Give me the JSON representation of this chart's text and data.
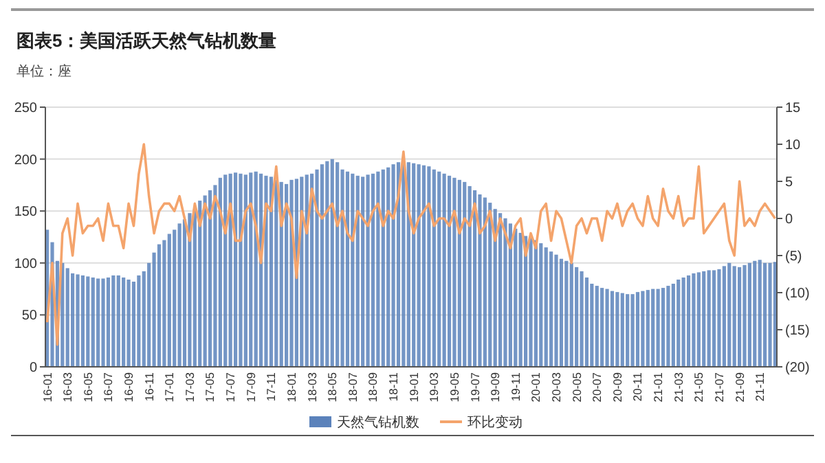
{
  "chart_data": {
    "type": "bar",
    "title": "图表5：美国活跃天然气钻机数量",
    "subtitle": "单位：座",
    "categories": [
      "16-01",
      null,
      null,
      null,
      "16-03",
      null,
      null,
      null,
      "16-05",
      null,
      null,
      null,
      "16-07",
      null,
      null,
      null,
      "16-09",
      null,
      null,
      null,
      "16-11",
      null,
      null,
      null,
      "17-01",
      null,
      null,
      null,
      "17-03",
      null,
      null,
      null,
      "17-05",
      null,
      null,
      null,
      "17-07",
      null,
      null,
      null,
      "17-09",
      null,
      null,
      null,
      "17-11",
      null,
      null,
      null,
      "18-01",
      null,
      null,
      null,
      "18-03",
      null,
      null,
      null,
      "18-05",
      null,
      null,
      null,
      "18-07",
      null,
      null,
      null,
      "18-09",
      null,
      null,
      null,
      "18-11",
      null,
      null,
      null,
      "19-01",
      null,
      null,
      null,
      "19-03",
      null,
      null,
      null,
      "19-05",
      null,
      null,
      null,
      "19-07",
      null,
      null,
      null,
      "19-09",
      null,
      null,
      null,
      "19-11",
      null,
      null,
      null,
      "20-01",
      null,
      null,
      null,
      "20-03",
      null,
      null,
      null,
      "20-05",
      null,
      null,
      null,
      "20-07",
      null,
      null,
      null,
      "20-09",
      null,
      null,
      null,
      "20-11",
      null,
      null,
      null,
      "21-01",
      null,
      null,
      null,
      "21-03",
      null,
      null,
      null,
      "21-05",
      null,
      null,
      null,
      "21-07",
      null,
      null,
      null,
      "21-09",
      null,
      null,
      null,
      "21-11",
      null,
      null,
      null
    ],
    "series": [
      {
        "name": "天然气钻机数",
        "color": "#5b82bb",
        "values": [
          132,
          120,
          102,
          100,
          95,
          90,
          89,
          88,
          87,
          86,
          85,
          85,
          86,
          88,
          88,
          86,
          84,
          82,
          88,
          92,
          100,
          110,
          118,
          122,
          128,
          132,
          138,
          142,
          148,
          152,
          160,
          165,
          170,
          175,
          182,
          185,
          186,
          187,
          186,
          185,
          187,
          188,
          186,
          184,
          183,
          180,
          178,
          176,
          180,
          181,
          183,
          185,
          186,
          190,
          195,
          198,
          200,
          197,
          190,
          188,
          186,
          184,
          183,
          185,
          186,
          188,
          190,
          192,
          195,
          197,
          198,
          197,
          196,
          195,
          194,
          193,
          190,
          188,
          186,
          184,
          182,
          180,
          178,
          174,
          170,
          166,
          163,
          158,
          152,
          148,
          143,
          138,
          133,
          129,
          126,
          124,
          122,
          119,
          115,
          111,
          108,
          104,
          102,
          100,
          96,
          92,
          86,
          80,
          78,
          76,
          75,
          73,
          72,
          71,
          70,
          70,
          72,
          73,
          74,
          75,
          75,
          76,
          78,
          80,
          84,
          86,
          88,
          90,
          91,
          92,
          93,
          93,
          94,
          97,
          100,
          97,
          96,
          98,
          100,
          102,
          103,
          100,
          100,
          101
        ]
      },
      {
        "name": "环比变动",
        "type": "line",
        "axis": "y2",
        "color": "#f4a46c",
        "values": [
          -14,
          -6,
          -17,
          -2,
          0,
          -5,
          2,
          -2,
          -1,
          -1,
          0,
          -3,
          2,
          -1,
          -1,
          -4,
          2,
          -1,
          6,
          10,
          3,
          -2,
          1,
          2,
          2,
          1,
          3,
          0,
          -3,
          2,
          -1,
          2,
          0,
          3,
          1,
          -2,
          2,
          -3,
          -3,
          1,
          2,
          -1,
          -6,
          2,
          1,
          7,
          -1,
          2,
          0,
          -8,
          1,
          -2,
          4,
          1,
          0,
          1,
          2,
          -1,
          1,
          -2,
          -3,
          1,
          0,
          -1,
          1,
          2,
          -1,
          1,
          0,
          3,
          9,
          1,
          -2,
          0,
          1,
          2,
          -1,
          0,
          0,
          -1,
          1,
          -2,
          0,
          -1,
          2,
          -2,
          -1,
          1,
          -3,
          0,
          -2,
          -4,
          -1,
          0,
          -5,
          -2,
          -4,
          1,
          2,
          -3,
          1,
          0,
          -3,
          -6,
          -1,
          0,
          -2,
          0,
          0,
          -3,
          1,
          0,
          2,
          -1,
          1,
          2,
          0,
          -1,
          3,
          0,
          -1,
          4,
          1,
          0,
          3,
          -1,
          0,
          0,
          7,
          -2,
          -1,
          0,
          1,
          2,
          -3,
          -5,
          5,
          -1,
          0,
          -1,
          1,
          2,
          1,
          0
        ]
      }
    ],
    "ylim": [
      0,
      250
    ],
    "yticks": [
      0,
      50,
      100,
      150,
      200,
      250
    ],
    "y2lim": [
      -20,
      15
    ],
    "y2ticks": [
      {
        "value": -20,
        "label": "(20)"
      },
      {
        "value": -15,
        "label": "(15)"
      },
      {
        "value": -10,
        "label": "(10)"
      },
      {
        "value": -5,
        "label": "(5)"
      },
      0,
      5,
      10,
      15
    ],
    "grid": "y",
    "legend": "bottom"
  }
}
